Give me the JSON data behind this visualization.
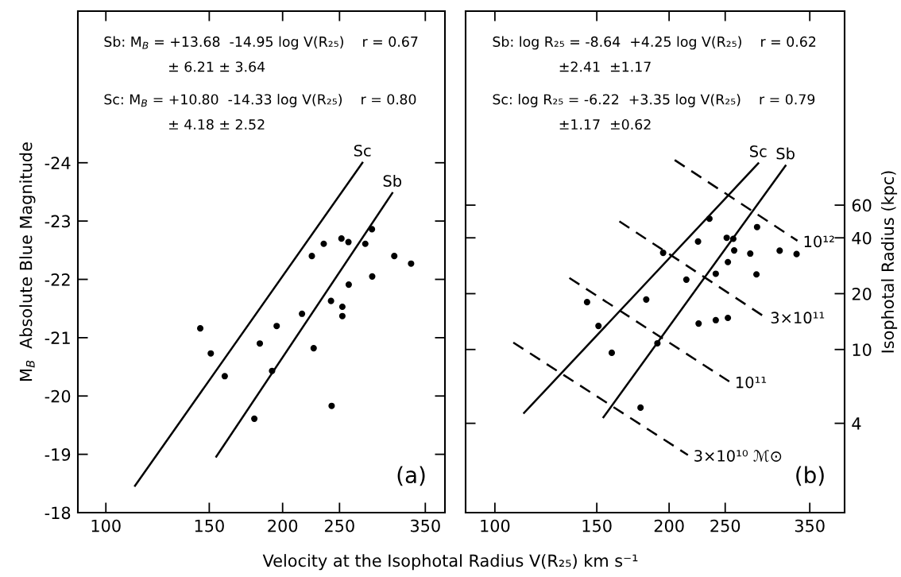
{
  "chart_data": [
    {
      "type": "scatter",
      "xlabel": "Velocity at the Isophotal Radius V(R₂₅) km s⁻¹",
      "ylabel": "M$_{B}$  Absolute Blue Magnitude",
      "annotations": [
        "Sb: M$_{B}$ = +13.68  -14.95 log V(R₂₅)    r = 0.67",
        "± 6.21 ± 3.64",
        "Sc: M$_{B}$ = +10.80  -14.33 log V(R₂₅)    r = 0.80",
        "± 4.18 ± 2.52",
        "(a)"
      ],
      "log": "x",
      "xlim": [
        89.6,
        378
      ],
      "xticks": [
        100,
        150,
        200,
        250,
        350
      ],
      "ylim": [
        -18,
        -26.6
      ],
      "yticks": [
        -24,
        -23,
        -22,
        -21,
        -20,
        -19,
        -18
      ],
      "grid": false,
      "legend": false,
      "series": [
        {
          "color": "#000000",
          "marker": "circle",
          "x": [
            144.8,
            150.9,
            159.4,
            179,
            182.9,
            191.9,
            195.4,
            215.8,
            224.3,
            225.9,
            235,
            241.8,
            242.4,
            251.9,
            252.8,
            252.8,
            258.9,
            259.2,
            276.6,
            283.9,
            284.2,
            309.9,
            331
          ],
          "values": [
            -21.16,
            -20.73,
            -20.34,
            -19.61,
            -20.9,
            -20.43,
            -21.2,
            -21.41,
            -22.4,
            -20.82,
            -22.61,
            -21.63,
            -19.83,
            -22.7,
            -21.53,
            -21.37,
            -22.64,
            -21.91,
            -22.61,
            -22.86,
            -22.05,
            -22.4,
            -22.27
          ]
        },
        {
          "type": "line",
          "name": "Sc",
          "color": "#000000",
          "line_style": "solid",
          "x": [
            112.1,
            273.5
          ],
          "values": [
            -18.46,
            -24.0
          ]
        },
        {
          "type": "line",
          "name": "Sb",
          "color": "#000000",
          "line_style": "solid",
          "x": [
            154.2,
            307.5
          ],
          "values": [
            -18.96,
            -23.48
          ]
        }
      ]
    },
    {
      "type": "scatter",
      "ylabel": "Isophotal Radius (kpc)",
      "annotations": [
        "Sb: log R₂₅ = -8.64  +4.25 log V(R₂₅)    r = 0.62",
        "±2.41  ±1.17",
        "Sc: log R₂₅ = -6.22  +3.35 log V(R₂₅)    r = 0.79",
        "±1.17  ±0.62",
        "(b)"
      ],
      "log": "xy",
      "xlim": [
        89,
        402
      ],
      "xticks": [
        100,
        150,
        200,
        250,
        350
      ],
      "ylim": [
        1.32,
        667
      ],
      "yticks": [
        4,
        10,
        20,
        40,
        60
      ],
      "grid": false,
      "legend": false,
      "series": [
        {
          "color": "#000000",
          "marker": "circle",
          "x": [
            144.3,
            151,
            159.2,
            178.5,
            182.6,
            190.9,
            195.3,
            214.2,
            224.4,
            224.9,
            234.8,
            240.8,
            240.8,
            251.5,
            252.7,
            252.7,
            258.2,
            259.1,
            276.2,
            283.1,
            283.8,
            310.5,
            332.1
          ],
          "values": [
            18.0,
            13.4,
            9.6,
            4.86,
            18.6,
            10.8,
            33.2,
            23.8,
            38.2,
            13.8,
            50.7,
            25.6,
            14.4,
            40.0,
            29.6,
            14.8,
            39.5,
            34.2,
            32.9,
            25.4,
            45.7,
            34.1,
            32.7
          ]
        },
        {
          "type": "line",
          "name": "Sc",
          "color": "#000000",
          "line_style": "solid",
          "x": [
            112.3,
            285.1
          ],
          "values": [
            4.55,
            100.7
          ]
        },
        {
          "type": "line",
          "name": "Sb",
          "color": "#000000",
          "line_style": "solid",
          "x": [
            154,
            317.8
          ],
          "values": [
            4.31,
            97.9
          ]
        },
        {
          "type": "line",
          "name": "10¹²",
          "color": "#000000",
          "line_style": "dashed",
          "x": [
            204.5,
            333.2
          ],
          "values": [
            105,
            38.6
          ]
        },
        {
          "type": "line",
          "name": "3×10¹¹",
          "color": "#000000",
          "line_style": "dashed",
          "x": [
            164.1,
            292.4
          ],
          "values": [
            49.1,
            15.0
          ]
        },
        {
          "type": "line",
          "name": "10¹¹",
          "color": "#000000",
          "line_style": "dashed",
          "x": [
            134.5,
            254.1
          ],
          "values": [
            24.3,
            6.72
          ]
        },
        {
          "type": "line",
          "name": "3×10¹⁰ ℳ⊙",
          "color": "#000000",
          "line_style": "dashed",
          "x": [
            107.6,
            215.5
          ],
          "values": [
            10.9,
            2.7
          ]
        }
      ]
    }
  ]
}
